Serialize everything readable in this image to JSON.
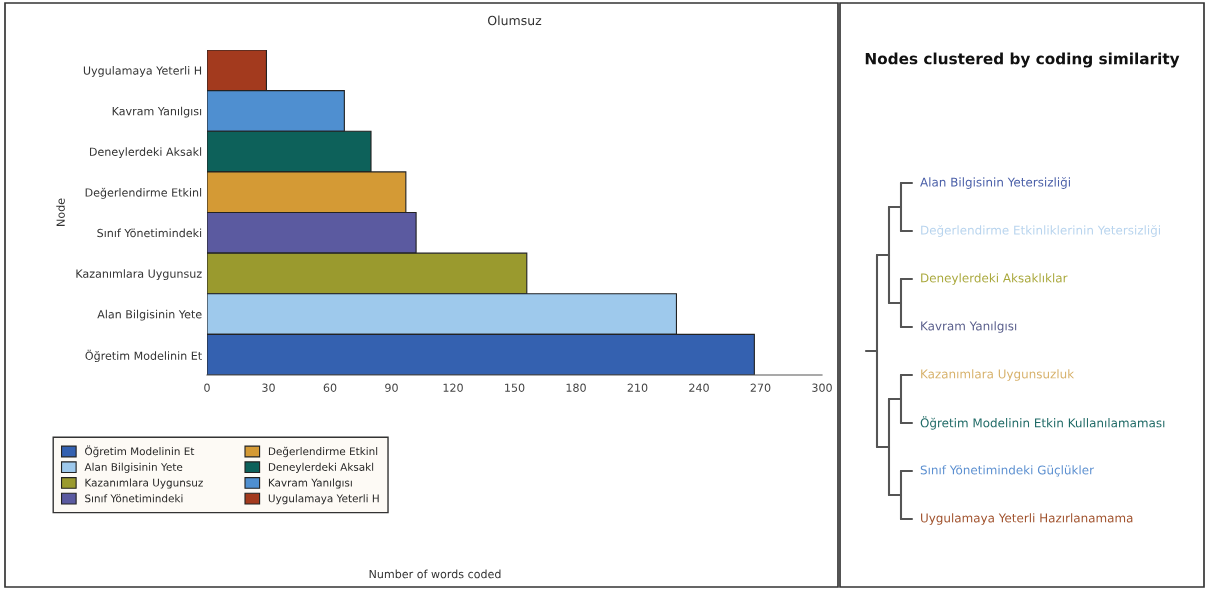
{
  "chart_data": [
    {
      "type": "bar",
      "orientation": "horizontal",
      "title": "Olumsuz",
      "xlabel": "Number of words coded",
      "ylabel": "Node",
      "categories": [
        "Uygulamaya Yeterli H",
        "Kavram Yanılgısı",
        "Deneylerdeki Aksakl",
        "Değerlendirme Etkinl",
        "Sınıf Yönetimindeki",
        "Kazanımlara Uygunsuz",
        "Alan Bilgisinin Yete",
        "Öğretim Modelinin Et"
      ],
      "series": [
        {
          "name": "Uygulamaya Yeterli H",
          "color": "#a33a1e",
          "values": [
            29,
            null,
            null,
            null,
            null,
            null,
            null,
            null
          ]
        },
        {
          "name": "Kavram Yanılgısı",
          "color": "#4f8fd0",
          "values": [
            null,
            67,
            null,
            null,
            null,
            null,
            null,
            null
          ]
        },
        {
          "name": "Deneylerdeki Aksakl",
          "color": "#0d615a",
          "values": [
            null,
            null,
            80,
            null,
            null,
            null,
            null,
            null
          ]
        },
        {
          "name": "Değerlendirme Etkinl",
          "color": "#d49a35",
          "values": [
            null,
            null,
            null,
            97,
            null,
            null,
            null,
            null
          ]
        },
        {
          "name": "Sınıf Yönetimindeki",
          "color": "#5b5aa0",
          "values": [
            null,
            null,
            null,
            null,
            102,
            null,
            null,
            null
          ]
        },
        {
          "name": "Kazanımlara Uygunsuz",
          "color": "#9a9a2e",
          "values": [
            null,
            null,
            null,
            null,
            null,
            156,
            null,
            null
          ]
        },
        {
          "name": "Alan Bilgisinin Yete",
          "color": "#9ec9ec",
          "values": [
            null,
            null,
            null,
            null,
            null,
            null,
            229,
            null
          ]
        },
        {
          "name": "Öğretim Modelinin Et",
          "color": "#3461b0",
          "values": [
            null,
            null,
            null,
            null,
            null,
            null,
            null,
            267
          ]
        }
      ],
      "xlim": [
        0,
        300
      ],
      "xticks": [
        0,
        30,
        60,
        90,
        120,
        150,
        180,
        210,
        240,
        270,
        300
      ],
      "legend": "bottom",
      "grid": false
    },
    {
      "type": "other",
      "title": "Nodes clustered by coding similarity",
      "annotations": [
        "Alan Bilgisinin Yetersizliği",
        "Değerlendirme Etkinliklerinin Yetersizliği",
        "Deneylerdeki Aksaklıklar",
        "Kavram Yanılgısı",
        "Kazanımlara Uygunsuzluk",
        "Öğretim Modelinin Etkin Kullanılamaması",
        "Sınıf Yönetimindeki Güçlükler",
        "Uygulamaya Yeterli Hazırlanamama"
      ],
      "colors": [
        "#4a5fa8",
        "#b8d4ee",
        "#a9a83c",
        "#5a5f8c",
        "#d7b16a",
        "#1f6a66",
        "#5b8fd0",
        "#a0522d"
      ]
    }
  ]
}
